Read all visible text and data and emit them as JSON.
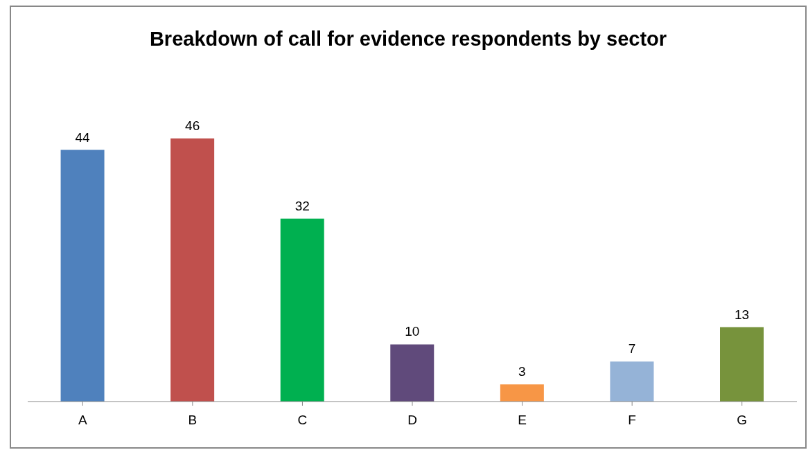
{
  "chart_data": {
    "type": "bar",
    "title": "Breakdown of call for evidence respondents by sector",
    "categories": [
      "A",
      "B",
      "C",
      "D",
      "E",
      "F",
      "G"
    ],
    "values": [
      44,
      46,
      32,
      10,
      3,
      7,
      13
    ],
    "colors": [
      "#4f81bd",
      "#c0504d",
      "#00b050",
      "#604a7b",
      "#f79646",
      "#95b3d7",
      "#77933c"
    ],
    "data_labels": true
  }
}
